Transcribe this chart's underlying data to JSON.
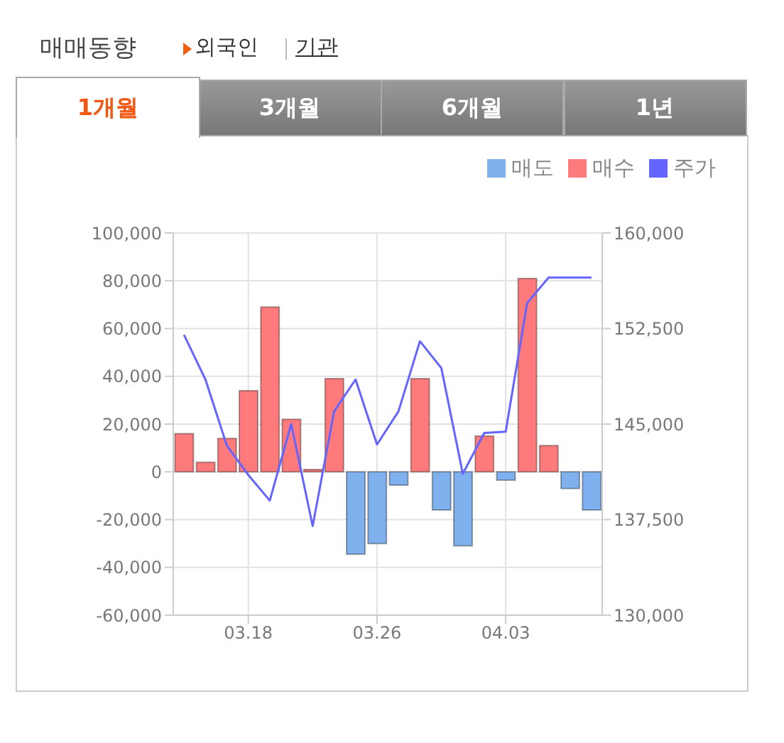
{
  "chart_data": {
    "type": "bar",
    "title": "매매동향",
    "annotations": [
      "외국인",
      "기관",
      "1개월",
      "3개월",
      "6개월",
      "1년"
    ],
    "categories": [
      null,
      null,
      null,
      "03.18",
      null,
      null,
      null,
      null,
      null,
      "03.26",
      null,
      null,
      null,
      null,
      null,
      "04.03",
      null,
      null,
      null,
      null
    ],
    "series": [
      {
        "name": "매도",
        "color": "#7fb1ef",
        "values": [
          0,
          0,
          0,
          0,
          0,
          0,
          0,
          0,
          -34500,
          -30000,
          -5600,
          0,
          -16000,
          -31000,
          0,
          -3500,
          0,
          0,
          -7000,
          -16000
        ]
      },
      {
        "name": "매수",
        "color": "#ff7a7a",
        "values": [
          16000,
          4000,
          14000,
          34000,
          69000,
          22000,
          1000,
          39000,
          0,
          0,
          0,
          39000,
          0,
          0,
          15000,
          0,
          81000,
          11000,
          0,
          0
        ]
      },
      {
        "name": "주가",
        "type": "line",
        "axis": "y2",
        "color": "#6464ff",
        "marker": "none",
        "values": [
          152000,
          148500,
          143300,
          141000,
          139000,
          145000,
          137000,
          146000,
          148500,
          143400,
          146000,
          151500,
          149400,
          141100,
          144300,
          144400,
          154500,
          156500,
          156500,
          156500
        ]
      }
    ],
    "stacked": true,
    "grid": true,
    "legend": "top right",
    "ylim": [
      -60000,
      100000
    ],
    "yticks": [
      {
        "value": -60000,
        "label": "-60,000"
      },
      {
        "value": -40000,
        "label": "-40,000"
      },
      {
        "value": -20000,
        "label": "-20,000"
      },
      0,
      {
        "value": 20000,
        "label": "20,000"
      },
      {
        "value": 40000,
        "label": "40,000"
      },
      {
        "value": 60000,
        "label": "60,000"
      },
      {
        "value": 80000,
        "label": "80,000"
      },
      {
        "value": 100000,
        "label": "100,000"
      }
    ],
    "y2lim": [
      130000,
      160000
    ],
    "y2ticks": [
      {
        "value": 130000,
        "label": "130,000"
      },
      {
        "value": 137500,
        "label": "137,500"
      },
      {
        "value": 145000,
        "label": "145,000"
      },
      {
        "value": 152500,
        "label": "152,500"
      },
      {
        "value": 160000,
        "label": "160,000"
      }
    ]
  }
}
